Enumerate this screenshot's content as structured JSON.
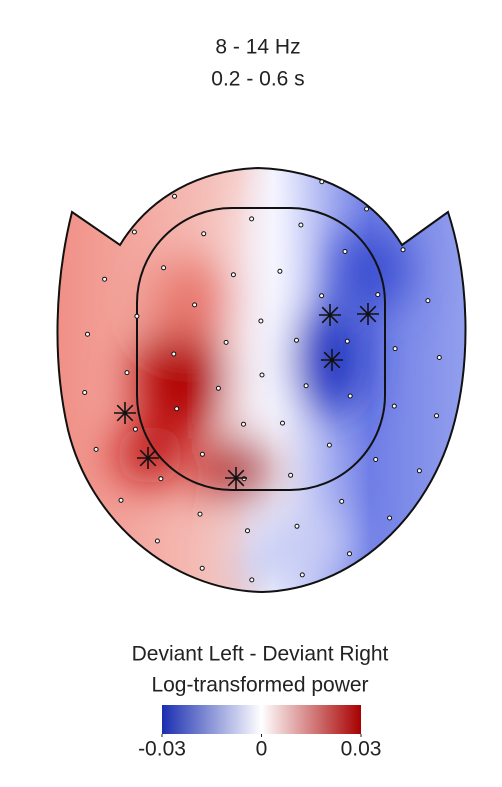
{
  "chart_data": {
    "type": "topomap",
    "title": "8 - 14 Hz",
    "subtitle": "0.2 - 0.6 s",
    "colorbar": {
      "label": "Deviant Left - Deviant Right",
      "sublabel": "Log-transformed power",
      "lim": [
        -0.03,
        0.03
      ],
      "ticks": [
        -0.03,
        0,
        0.03
      ],
      "colors": [
        "#1a2eb0",
        "#ffffff",
        "#a80000"
      ]
    }
  }
}
